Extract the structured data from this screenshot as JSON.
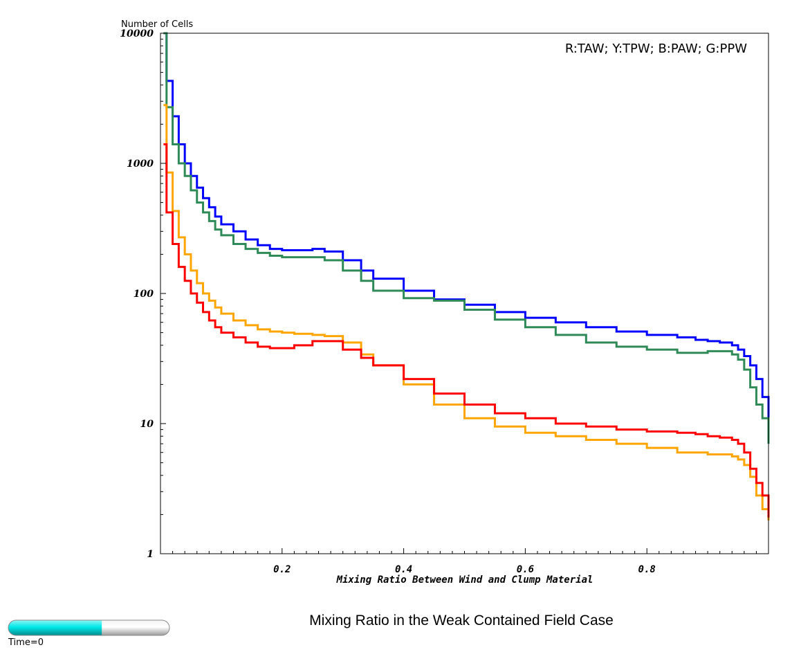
{
  "chart_data": {
    "type": "line",
    "title": "Mixing Ratio in the Weak Contained Field Case",
    "xlabel": "Mixing Ratio Between Wind and Clump Material",
    "ylabel": "Number of Cells",
    "legend_text": "R:TAW; Y:TPW; B:PAW; G:PPW",
    "legend_position": "top-right",
    "x_scale": "linear",
    "y_scale": "log",
    "xlim": [
      0,
      1
    ],
    "ylim": [
      1,
      10000
    ],
    "x_ticks": [
      "0.2",
      "0.4",
      "0.6",
      "0.8"
    ],
    "y_ticks": [
      "10000",
      "1000",
      "100",
      "10",
      "1"
    ],
    "series": [
      {
        "color": "#0000ff",
        "x": [
          0.005,
          0.01,
          0.02,
          0.03,
          0.04,
          0.05,
          0.06,
          0.07,
          0.08,
          0.09,
          0.1,
          0.12,
          0.14,
          0.16,
          0.18,
          0.2,
          0.22,
          0.25,
          0.27,
          0.3,
          0.33,
          0.35,
          0.4,
          0.45,
          0.5,
          0.55,
          0.6,
          0.65,
          0.7,
          0.75,
          0.8,
          0.85,
          0.88,
          0.9,
          0.92,
          0.94,
          0.95,
          0.96,
          0.97,
          0.98,
          0.99,
          1.0
        ],
        "values": [
          10000,
          4300,
          2300,
          1400,
          1000,
          800,
          650,
          540,
          460,
          390,
          340,
          300,
          260,
          235,
          220,
          215,
          215,
          220,
          210,
          180,
          150,
          130,
          105,
          90,
          82,
          72,
          65,
          60,
          55,
          51,
          48,
          46,
          44,
          43,
          42,
          40,
          37,
          33,
          28,
          22,
          16,
          11
        ]
      },
      {
        "color": "#2e8b57",
        "x": [
          0.005,
          0.01,
          0.02,
          0.03,
          0.04,
          0.05,
          0.06,
          0.07,
          0.08,
          0.09,
          0.1,
          0.12,
          0.14,
          0.16,
          0.18,
          0.2,
          0.22,
          0.25,
          0.27,
          0.3,
          0.33,
          0.35,
          0.4,
          0.45,
          0.5,
          0.55,
          0.6,
          0.65,
          0.7,
          0.75,
          0.8,
          0.85,
          0.88,
          0.9,
          0.92,
          0.94,
          0.95,
          0.96,
          0.97,
          0.98,
          0.99,
          1.0
        ],
        "values": [
          10000,
          2700,
          1400,
          1000,
          800,
          620,
          500,
          420,
          360,
          310,
          280,
          240,
          220,
          205,
          195,
          190,
          190,
          190,
          180,
          150,
          125,
          105,
          92,
          88,
          75,
          63,
          55,
          48,
          42,
          39,
          37,
          35,
          35,
          36,
          36,
          34,
          31,
          26,
          19,
          14,
          11,
          7
        ]
      },
      {
        "color": "#ffa500",
        "x": [
          0.005,
          0.01,
          0.02,
          0.03,
          0.04,
          0.05,
          0.06,
          0.07,
          0.08,
          0.09,
          0.1,
          0.12,
          0.14,
          0.16,
          0.18,
          0.2,
          0.22,
          0.25,
          0.27,
          0.3,
          0.33,
          0.35,
          0.4,
          0.45,
          0.5,
          0.55,
          0.6,
          0.65,
          0.7,
          0.75,
          0.8,
          0.85,
          0.88,
          0.9,
          0.92,
          0.94,
          0.95,
          0.96,
          0.97,
          0.98,
          0.99,
          1.0
        ],
        "values": [
          2800,
          850,
          430,
          270,
          200,
          150,
          120,
          100,
          88,
          78,
          70,
          62,
          57,
          53,
          51,
          50,
          49,
          48,
          47,
          42,
          34,
          28,
          20,
          14,
          11,
          9.5,
          8.5,
          8.0,
          7.5,
          7.0,
          6.5,
          6.0,
          6.0,
          5.8,
          5.8,
          5.6,
          5.3,
          4.8,
          3.9,
          2.8,
          2.2,
          1.8
        ]
      },
      {
        "color": "#ff0000",
        "x": [
          0.005,
          0.01,
          0.02,
          0.03,
          0.04,
          0.05,
          0.06,
          0.07,
          0.08,
          0.09,
          0.1,
          0.12,
          0.14,
          0.16,
          0.18,
          0.2,
          0.22,
          0.25,
          0.27,
          0.3,
          0.33,
          0.35,
          0.4,
          0.45,
          0.5,
          0.55,
          0.6,
          0.65,
          0.7,
          0.75,
          0.8,
          0.85,
          0.88,
          0.9,
          0.92,
          0.94,
          0.95,
          0.96,
          0.97,
          0.98,
          0.99,
          1.0
        ],
        "values": [
          1400,
          420,
          240,
          160,
          125,
          100,
          85,
          72,
          62,
          55,
          50,
          46,
          42,
          39,
          38,
          38,
          40,
          43,
          43,
          37,
          32,
          28,
          22,
          17,
          14,
          12,
          11,
          10,
          9.5,
          9.0,
          8.7,
          8.5,
          8.3,
          8.0,
          7.8,
          7.5,
          7.0,
          6.0,
          4.5,
          3.5,
          2.8,
          1.9
        ]
      }
    ]
  },
  "time_slider": {
    "label": "Time=0",
    "fill_fraction": 0.58,
    "fill_color": "#00e5e5",
    "track_color": "#dcdcdc"
  }
}
